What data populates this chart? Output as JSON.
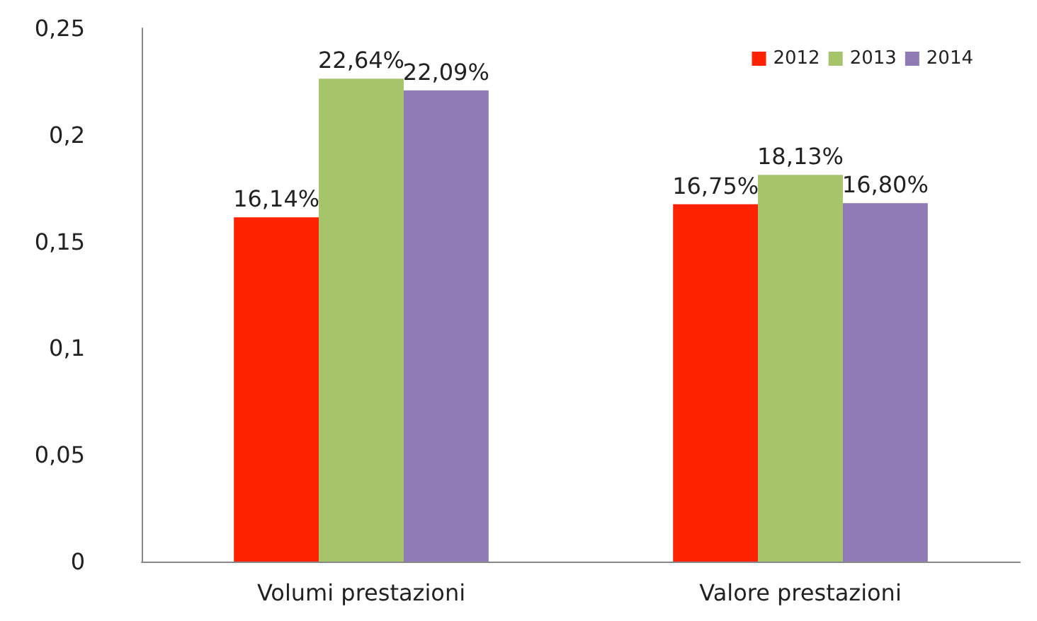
{
  "chart_data": {
    "type": "bar",
    "categories": [
      "Volumi prestazioni",
      "Valore prestazioni"
    ],
    "series": [
      {
        "name": "2012",
        "color": "#ff2200",
        "values": [
          0.1614,
          0.1675
        ],
        "value_labels": [
          "16,14%",
          "16,75%"
        ]
      },
      {
        "name": "2013",
        "color": "#a6c46a",
        "values": [
          0.2264,
          0.1813
        ],
        "value_labels": [
          "22,64%",
          "18,13%"
        ]
      },
      {
        "name": "2014",
        "color": "#8f7ab5",
        "values": [
          0.2209,
          0.168
        ],
        "value_labels": [
          "22,09%",
          "16,80%"
        ]
      }
    ],
    "ylim": [
      0,
      0.25
    ],
    "yticks": [
      0,
      {
        "value": 0.05,
        "label": "0,05"
      },
      {
        "value": 0.1,
        "label": "0,1"
      },
      {
        "value": 0.15,
        "label": "0,15"
      },
      {
        "value": 0.2,
        "label": "0,2"
      },
      {
        "value": 0.25,
        "label": "0,25"
      }
    ],
    "grid": false,
    "legend": "top right"
  }
}
